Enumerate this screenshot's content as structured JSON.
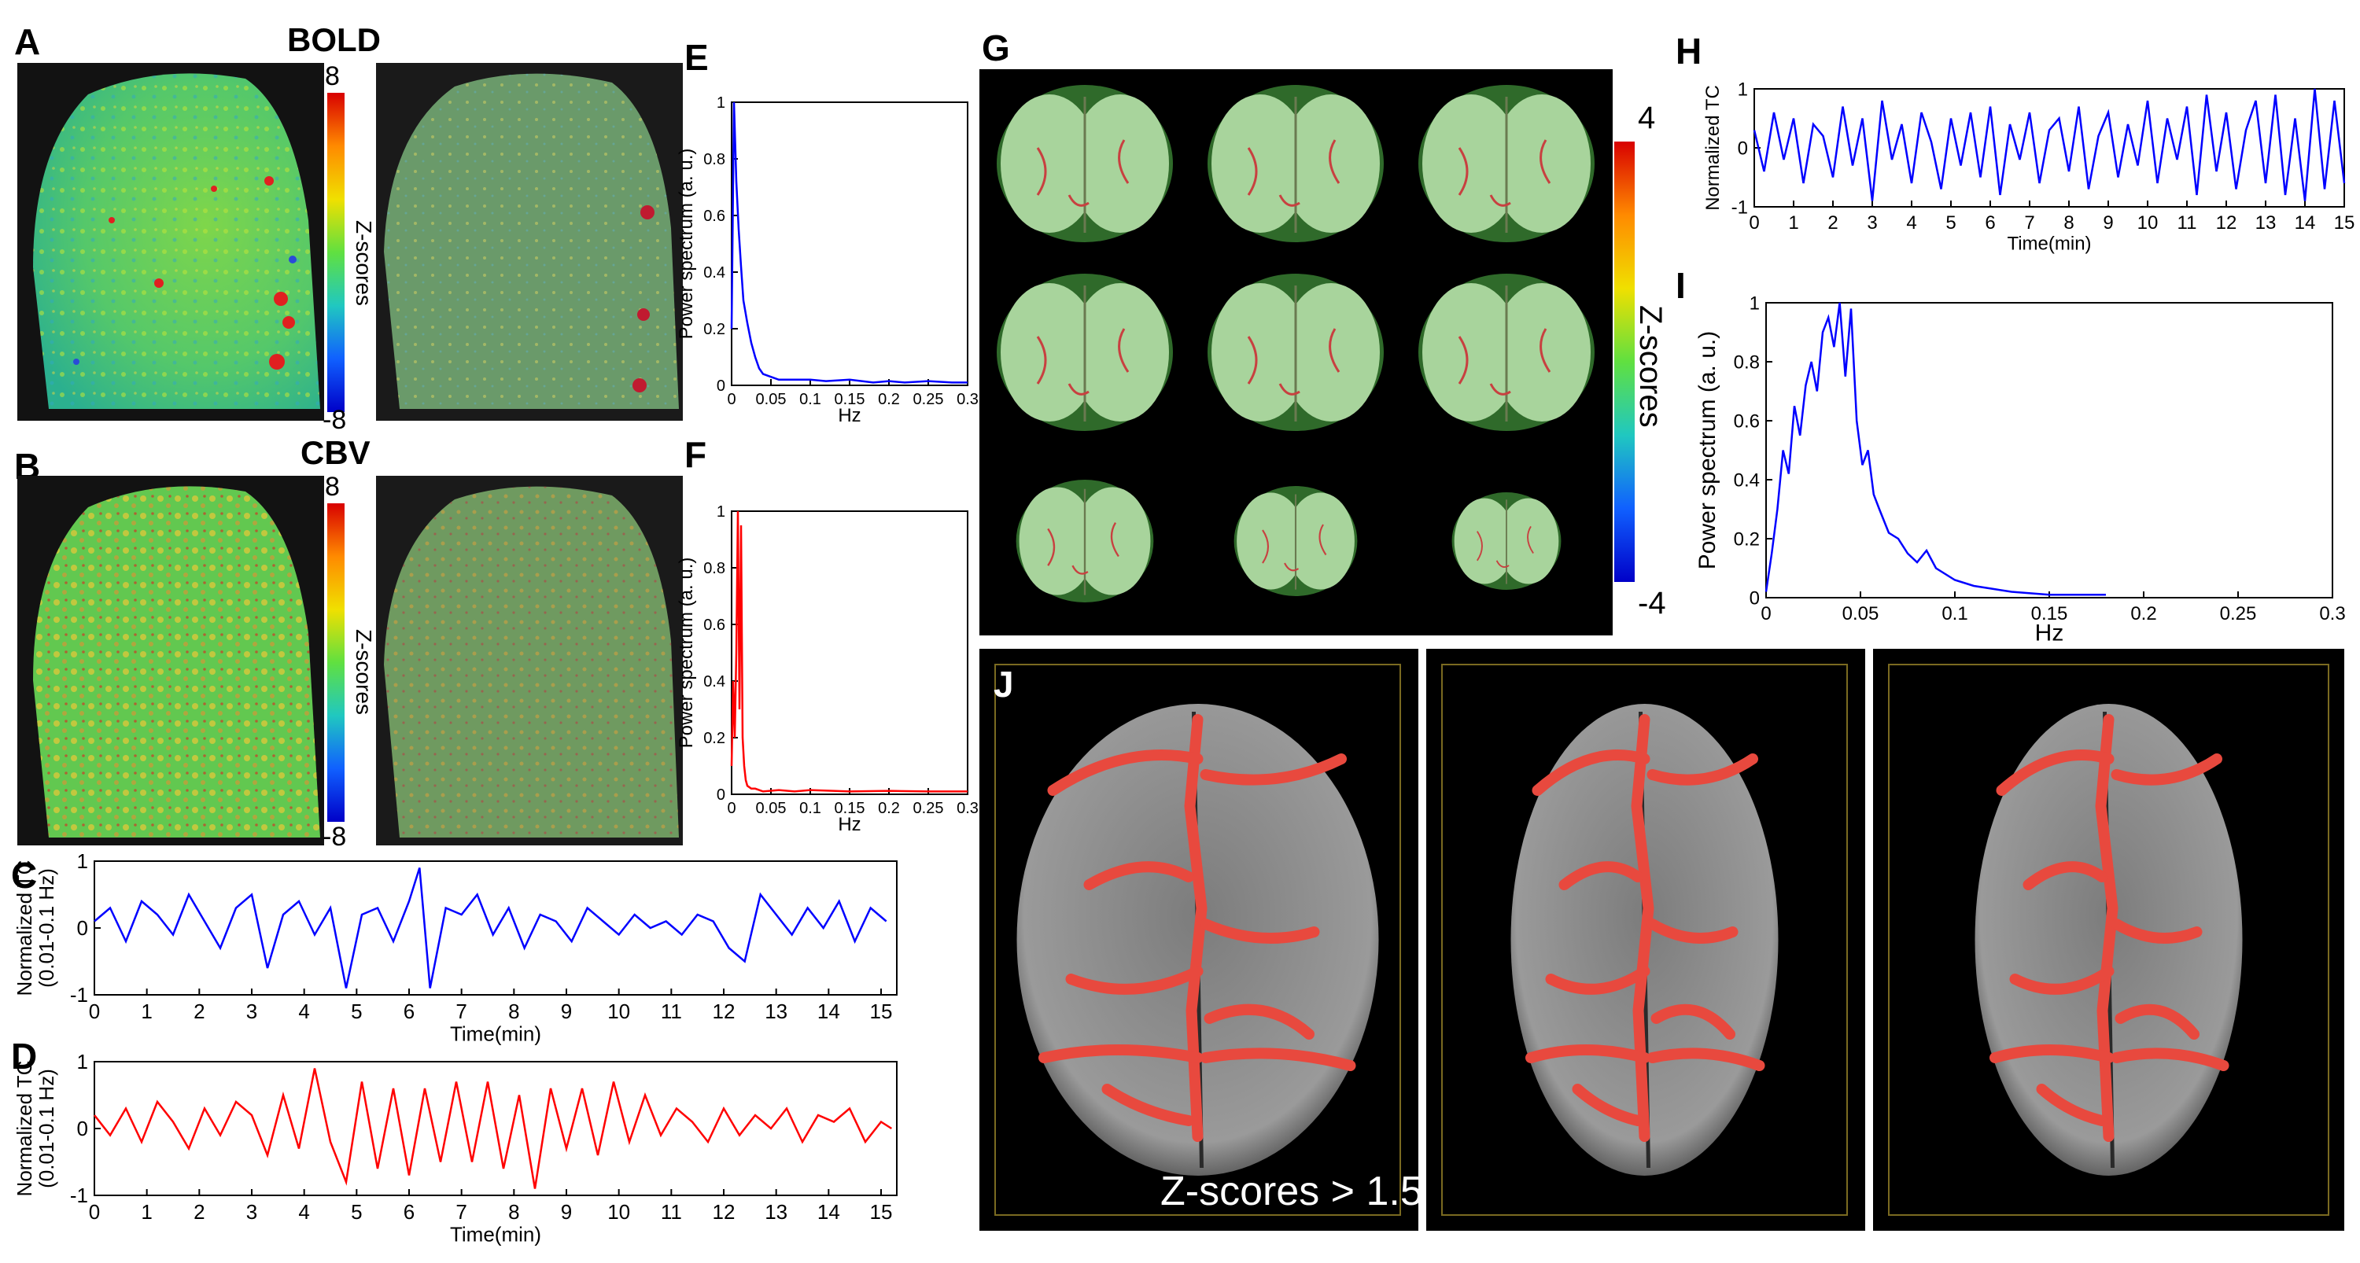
{
  "panels": {
    "A": "A",
    "B": "B",
    "C": "C",
    "D": "D",
    "E": "E",
    "F": "F",
    "G": "G",
    "H": "H",
    "I": "I",
    "J": "J"
  },
  "titles": {
    "bold": "BOLD",
    "cbv": "CBV"
  },
  "colorbars": {
    "ab": {
      "max": "8",
      "min": "-8",
      "label": "Z-scores"
    },
    "g": {
      "max": "4",
      "min": "-4",
      "label": "Z-scores"
    }
  },
  "annotation_j": "Z-scores > 1.5",
  "colors": {
    "bold_series": "#0000ff",
    "cbv_series": "#ff0000",
    "overlay": "#e8493e"
  },
  "chart_data": [
    {
      "id": "C",
      "type": "line",
      "xlabel": "Time(min)",
      "ylabel": "Normalized TC",
      "ylabel2": "(0.01-0.1 Hz)",
      "xlim": [
        0,
        15.3
      ],
      "ylim": [
        -1,
        1
      ],
      "xticks": [
        "0",
        "1",
        "2",
        "3",
        "4",
        "5",
        "6",
        "7",
        "8",
        "9",
        "10",
        "11",
        "12",
        "13",
        "14",
        "15"
      ],
      "yticks": [
        "-1",
        "0",
        "1"
      ],
      "series": [
        {
          "color": "#0000ff",
          "x": [
            0,
            0.3,
            0.6,
            0.9,
            1.2,
            1.5,
            1.8,
            2.1,
            2.4,
            2.7,
            3.0,
            3.3,
            3.6,
            3.9,
            4.2,
            4.5,
            4.8,
            5.1,
            5.4,
            5.7,
            6.0,
            6.2,
            6.4,
            6.7,
            7.0,
            7.3,
            7.6,
            7.9,
            8.2,
            8.5,
            8.8,
            9.1,
            9.4,
            9.7,
            10.0,
            10.3,
            10.6,
            10.9,
            11.2,
            11.5,
            11.8,
            12.1,
            12.4,
            12.7,
            13.0,
            13.3,
            13.6,
            13.9,
            14.2,
            14.5,
            14.8,
            15.1
          ],
          "y": [
            0.1,
            0.3,
            -0.2,
            0.4,
            0.2,
            -0.1,
            0.5,
            0.1,
            -0.3,
            0.3,
            0.5,
            -0.6,
            0.2,
            0.4,
            -0.1,
            0.3,
            -0.9,
            0.2,
            0.3,
            -0.2,
            0.4,
            0.9,
            -0.9,
            0.3,
            0.2,
            0.5,
            -0.1,
            0.3,
            -0.3,
            0.2,
            0.1,
            -0.2,
            0.3,
            0.1,
            -0.1,
            0.2,
            0.0,
            0.1,
            -0.1,
            0.2,
            0.1,
            -0.3,
            -0.5,
            0.5,
            0.2,
            -0.1,
            0.3,
            0.0,
            0.4,
            -0.2,
            0.3,
            0.1
          ]
        }
      ]
    },
    {
      "id": "D",
      "type": "line",
      "xlabel": "Time(min)",
      "ylabel": "Normalized TC",
      "ylabel2": "(0.01-0.1 Hz)",
      "xlim": [
        0,
        15.3
      ],
      "ylim": [
        -1,
        1
      ],
      "xticks": [
        "0",
        "1",
        "2",
        "3",
        "4",
        "5",
        "6",
        "7",
        "8",
        "9",
        "10",
        "11",
        "12",
        "13",
        "14",
        "15"
      ],
      "yticks": [
        "-1",
        "0",
        "1"
      ],
      "series": [
        {
          "color": "#ff0000",
          "x": [
            0,
            0.3,
            0.6,
            0.9,
            1.2,
            1.5,
            1.8,
            2.1,
            2.4,
            2.7,
            3.0,
            3.3,
            3.6,
            3.9,
            4.2,
            4.5,
            4.8,
            5.1,
            5.4,
            5.7,
            6.0,
            6.3,
            6.6,
            6.9,
            7.2,
            7.5,
            7.8,
            8.1,
            8.4,
            8.7,
            9.0,
            9.3,
            9.6,
            9.9,
            10.2,
            10.5,
            10.8,
            11.1,
            11.4,
            11.7,
            12.0,
            12.3,
            12.6,
            12.9,
            13.2,
            13.5,
            13.8,
            14.1,
            14.4,
            14.7,
            15.0,
            15.2
          ],
          "y": [
            0.2,
            -0.1,
            0.3,
            -0.2,
            0.4,
            0.1,
            -0.3,
            0.3,
            -0.1,
            0.4,
            0.2,
            -0.4,
            0.5,
            -0.3,
            0.9,
            -0.2,
            -0.8,
            0.7,
            -0.6,
            0.6,
            -0.7,
            0.6,
            -0.5,
            0.7,
            -0.5,
            0.7,
            -0.6,
            0.5,
            -0.9,
            0.6,
            -0.3,
            0.6,
            -0.4,
            0.7,
            -0.2,
            0.5,
            -0.1,
            0.3,
            0.1,
            -0.2,
            0.3,
            -0.1,
            0.2,
            0.0,
            0.3,
            -0.2,
            0.2,
            0.1,
            0.3,
            -0.2,
            0.1,
            0.0
          ]
        }
      ]
    },
    {
      "id": "E",
      "type": "line",
      "xlabel": "Hz",
      "ylabel": "Power spectrum (a. u.)",
      "xlim": [
        0,
        0.3
      ],
      "ylim": [
        0,
        1
      ],
      "xticks": [
        "0",
        "0.05",
        "0.1",
        "0.15",
        "0.2",
        "0.25",
        "0.3"
      ],
      "yticks": [
        "0",
        "0.2",
        "0.4",
        "0.6",
        "0.8",
        "1"
      ],
      "series": [
        {
          "color": "#0000ff",
          "x": [
            0,
            0.003,
            0.006,
            0.009,
            0.012,
            0.015,
            0.02,
            0.025,
            0.03,
            0.035,
            0.04,
            0.05,
            0.06,
            0.08,
            0.1,
            0.12,
            0.15,
            0.18,
            0.2,
            0.22,
            0.25,
            0.28,
            0.3
          ],
          "y": [
            0.2,
            1.0,
            0.72,
            0.55,
            0.42,
            0.3,
            0.22,
            0.15,
            0.1,
            0.06,
            0.04,
            0.03,
            0.02,
            0.02,
            0.02,
            0.015,
            0.02,
            0.01,
            0.015,
            0.01,
            0.015,
            0.01,
            0.01
          ]
        }
      ]
    },
    {
      "id": "F",
      "type": "line",
      "xlabel": "Hz",
      "ylabel": "Power spectrum (a. u.)",
      "xlim": [
        0,
        0.3
      ],
      "ylim": [
        0,
        1
      ],
      "xticks": [
        "0",
        "0.05",
        "0.1",
        "0.15",
        "0.2",
        "0.25",
        "0.3"
      ],
      "yticks": [
        "0",
        "0.2",
        "0.4",
        "0.6",
        "0.8",
        "1"
      ],
      "series": [
        {
          "color": "#ff0000",
          "x": [
            0,
            0.002,
            0.004,
            0.006,
            0.008,
            0.01,
            0.012,
            0.014,
            0.016,
            0.018,
            0.02,
            0.025,
            0.03,
            0.04,
            0.06,
            0.08,
            0.1,
            0.15,
            0.2,
            0.25,
            0.3
          ],
          "y": [
            0.1,
            0.4,
            0.2,
            0.5,
            1.0,
            0.3,
            0.95,
            0.2,
            0.1,
            0.05,
            0.03,
            0.02,
            0.02,
            0.01,
            0.015,
            0.01,
            0.015,
            0.01,
            0.012,
            0.01,
            0.01
          ]
        }
      ]
    },
    {
      "id": "H",
      "type": "line",
      "xlabel": "Time(min)",
      "ylabel": "Normalized TC",
      "xlim": [
        0,
        15
      ],
      "ylim": [
        -1,
        1
      ],
      "xticks": [
        "0",
        "1",
        "2",
        "3",
        "4",
        "5",
        "6",
        "7",
        "8",
        "9",
        "10",
        "11",
        "12",
        "13",
        "14",
        "15"
      ],
      "yticks": [
        "-1",
        "0",
        "1"
      ],
      "series": [
        {
          "color": "#0000ff",
          "x": [
            0,
            0.25,
            0.5,
            0.75,
            1.0,
            1.25,
            1.5,
            1.75,
            2.0,
            2.25,
            2.5,
            2.75,
            3.0,
            3.25,
            3.5,
            3.75,
            4.0,
            4.25,
            4.5,
            4.75,
            5.0,
            5.25,
            5.5,
            5.75,
            6.0,
            6.25,
            6.5,
            6.75,
            7.0,
            7.25,
            7.5,
            7.75,
            8.0,
            8.25,
            8.5,
            8.75,
            9.0,
            9.25,
            9.5,
            9.75,
            10.0,
            10.25,
            10.5,
            10.75,
            11.0,
            11.25,
            11.5,
            11.75,
            12.0,
            12.25,
            12.5,
            12.75,
            13.0,
            13.25,
            13.5,
            13.75,
            14.0,
            14.25,
            14.5,
            14.75,
            15.0
          ],
          "y": [
            0.3,
            -0.4,
            0.6,
            -0.2,
            0.5,
            -0.6,
            0.4,
            0.2,
            -0.5,
            0.7,
            -0.3,
            0.5,
            -0.9,
            0.8,
            -0.2,
            0.4,
            -0.6,
            0.6,
            0.1,
            -0.7,
            0.5,
            -0.3,
            0.6,
            -0.5,
            0.7,
            -0.8,
            0.4,
            -0.2,
            0.6,
            -0.6,
            0.3,
            0.5,
            -0.4,
            0.7,
            -0.7,
            0.2,
            0.6,
            -0.5,
            0.4,
            -0.3,
            0.8,
            -0.6,
            0.5,
            -0.2,
            0.7,
            -0.8,
            0.9,
            -0.4,
            0.6,
            -0.7,
            0.3,
            0.8,
            -0.6,
            0.9,
            -0.8,
            0.5,
            -0.9,
            1.0,
            -0.7,
            0.8,
            -0.6
          ]
        }
      ]
    },
    {
      "id": "I",
      "type": "line",
      "xlabel": "Hz",
      "ylabel": "Power spectrum (a. u.)",
      "xlim": [
        0,
        0.3
      ],
      "ylim": [
        0,
        1
      ],
      "xticks": [
        "0",
        "0.05",
        "0.1",
        "0.15",
        "0.2",
        "0.25",
        "0.3"
      ],
      "yticks": [
        "0",
        "0.2",
        "0.4",
        "0.6",
        "0.8",
        "1"
      ],
      "series": [
        {
          "color": "#0000ff",
          "x": [
            0,
            0.003,
            0.006,
            0.009,
            0.012,
            0.015,
            0.018,
            0.021,
            0.024,
            0.027,
            0.03,
            0.033,
            0.036,
            0.039,
            0.042,
            0.045,
            0.048,
            0.051,
            0.054,
            0.057,
            0.06,
            0.065,
            0.07,
            0.075,
            0.08,
            0.085,
            0.09,
            0.1,
            0.11,
            0.12,
            0.13,
            0.15,
            0.18
          ],
          "y": [
            0.02,
            0.15,
            0.3,
            0.5,
            0.42,
            0.65,
            0.55,
            0.72,
            0.8,
            0.7,
            0.9,
            0.95,
            0.85,
            1.0,
            0.75,
            0.98,
            0.6,
            0.45,
            0.5,
            0.35,
            0.3,
            0.22,
            0.2,
            0.15,
            0.12,
            0.16,
            0.1,
            0.06,
            0.04,
            0.03,
            0.02,
            0.01,
            0.01
          ]
        }
      ]
    }
  ]
}
